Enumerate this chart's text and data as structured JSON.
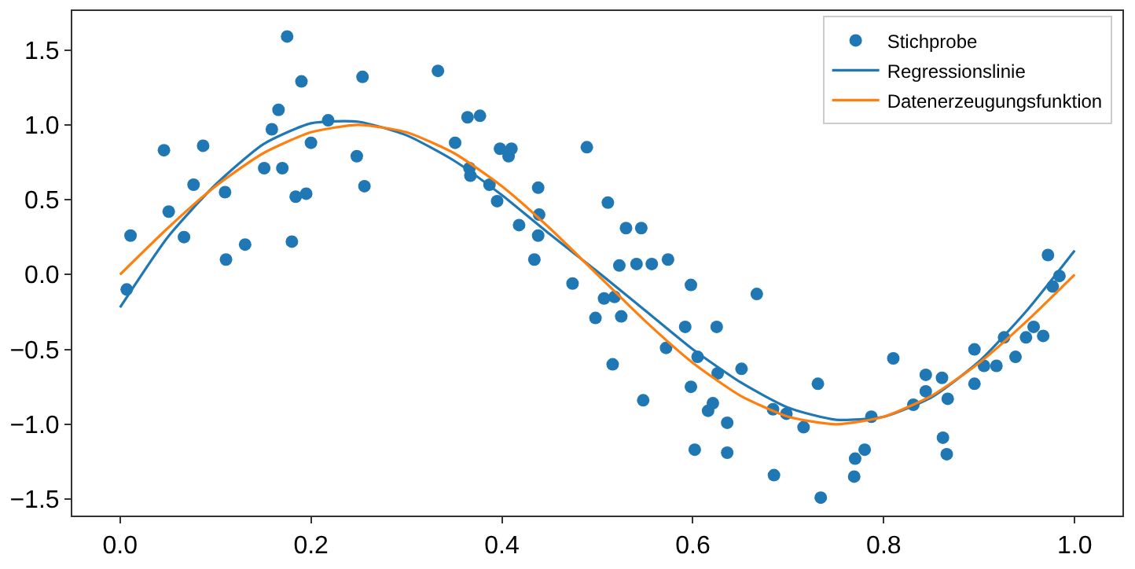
{
  "chart_data": {
    "type": "scatter",
    "legend": "top right",
    "grid": false,
    "xlim": [
      -0.05,
      1.05
    ],
    "ylim": [
      -1.61,
      1.76
    ],
    "xticks": [
      {
        "value": 0,
        "label": "0.0"
      },
      {
        "value": 0.2,
        "label": "0.2"
      },
      {
        "value": 0.4,
        "label": "0.4"
      },
      {
        "value": 0.6,
        "label": "0.6"
      },
      {
        "value": 0.8,
        "label": "0.8"
      },
      {
        "value": 1,
        "label": "1.0"
      }
    ],
    "yticks": [
      {
        "value": -1.5,
        "label": "−1.5"
      },
      {
        "value": -1,
        "label": "−1.0"
      },
      {
        "value": -0.5,
        "label": "−0.5"
      },
      {
        "value": 0,
        "label": "0.0"
      },
      {
        "value": 0.5,
        "label": "0.5"
      },
      {
        "value": 1,
        "label": "1.0"
      },
      {
        "value": 1.5,
        "label": "1.5"
      }
    ],
    "series": [
      {
        "name": "Stichprobe",
        "marker": "circle",
        "color": "#1f77b4",
        "x": [
          0.007,
          0.011,
          0.046,
          0.051,
          0.067,
          0.077,
          0.087,
          0.11,
          0.111,
          0.131,
          0.151,
          0.159,
          0.166,
          0.17,
          0.175,
          0.18,
          0.184,
          0.19,
          0.195,
          0.2,
          0.218,
          0.248,
          0.254,
          0.256,
          0.333,
          0.351,
          0.364,
          0.366,
          0.367,
          0.377,
          0.387,
          0.395,
          0.398,
          0.407,
          0.41,
          0.418,
          0.434,
          0.438,
          0.439,
          0.438,
          0.474,
          0.489,
          0.498,
          0.507,
          0.511,
          0.516,
          0.518,
          0.523,
          0.525,
          0.53,
          0.546,
          0.548,
          0.541,
          0.557,
          0.574,
          0.572,
          0.592,
          0.598,
          0.598,
          0.602,
          0.605,
          0.616,
          0.621,
          0.625,
          0.626,
          0.636,
          0.636,
          0.651,
          0.667,
          0.684,
          0.685,
          0.698,
          0.716,
          0.731,
          0.734,
          0.77,
          0.769,
          0.78,
          0.787,
          0.81,
          0.831,
          0.844,
          0.844,
          0.861,
          0.862,
          0.866,
          0.867,
          0.895,
          0.895,
          0.905,
          0.918,
          0.926,
          0.938,
          0.949,
          0.957,
          0.967,
          0.972,
          0.977,
          0.984
        ],
        "values": [
          -0.1,
          0.26,
          0.83,
          0.42,
          0.25,
          0.6,
          0.86,
          0.55,
          0.1,
          0.2,
          0.71,
          0.97,
          1.1,
          0.71,
          1.59,
          0.22,
          0.52,
          1.29,
          0.54,
          0.88,
          1.03,
          0.79,
          1.32,
          0.59,
          1.36,
          0.88,
          1.05,
          0.71,
          0.66,
          1.06,
          0.6,
          0.49,
          0.84,
          0.79,
          0.84,
          0.33,
          0.1,
          0.58,
          0.4,
          0.26,
          -0.06,
          0.85,
          -0.29,
          -0.16,
          0.48,
          -0.6,
          -0.15,
          0.06,
          -0.28,
          0.31,
          0.31,
          -0.84,
          0.07,
          0.07,
          0.1,
          -0.49,
          -0.35,
          -0.07,
          -0.75,
          -1.17,
          -0.55,
          -0.91,
          -0.86,
          -0.35,
          -0.66,
          -1.19,
          -0.99,
          -0.63,
          -0.13,
          -0.9,
          -1.34,
          -0.93,
          -1.02,
          -0.73,
          -1.49,
          -1.23,
          -1.35,
          -1.17,
          -0.95,
          -0.56,
          -0.87,
          -0.67,
          -0.78,
          -0.69,
          -1.09,
          -1.2,
          -0.83,
          -0.5,
          -0.73,
          -0.61,
          -0.61,
          -0.42,
          -0.55,
          -0.42,
          -0.35,
          -0.41,
          0.13,
          -0.08,
          -0.01
        ]
      },
      {
        "name": "Regressionslinie",
        "type": "line",
        "line_style": "solid",
        "color": "#1f77b4",
        "x": [
          0,
          0.05,
          0.1,
          0.15,
          0.2,
          0.25,
          0.3,
          0.35,
          0.4,
          0.45,
          0.5,
          0.55,
          0.6,
          0.65,
          0.7,
          0.75,
          0.8,
          0.85,
          0.9,
          0.95,
          1.0
        ],
        "values": [
          -0.22,
          0.25,
          0.6,
          0.87,
          1.01,
          1.02,
          0.93,
          0.76,
          0.53,
          0.27,
          0.02,
          -0.24,
          -0.5,
          -0.72,
          -0.89,
          -0.97,
          -0.95,
          -0.82,
          -0.58,
          -0.24,
          0.16
        ]
      },
      {
        "name": "Datenerzeugungsfunktion",
        "type": "line",
        "line_style": "solid",
        "color": "#ff7f0e",
        "x": [
          0,
          0.05,
          0.1,
          0.15,
          0.2,
          0.25,
          0.3,
          0.35,
          0.4,
          0.45,
          0.5,
          0.55,
          0.6,
          0.65,
          0.7,
          0.75,
          0.8,
          0.85,
          0.9,
          0.95,
          1.0
        ],
        "values": [
          0,
          0.31,
          0.59,
          0.81,
          0.95,
          1.0,
          0.95,
          0.81,
          0.59,
          0.31,
          0,
          -0.31,
          -0.59,
          -0.81,
          -0.95,
          -1.0,
          -0.95,
          -0.81,
          -0.59,
          -0.31,
          0
        ]
      }
    ]
  }
}
